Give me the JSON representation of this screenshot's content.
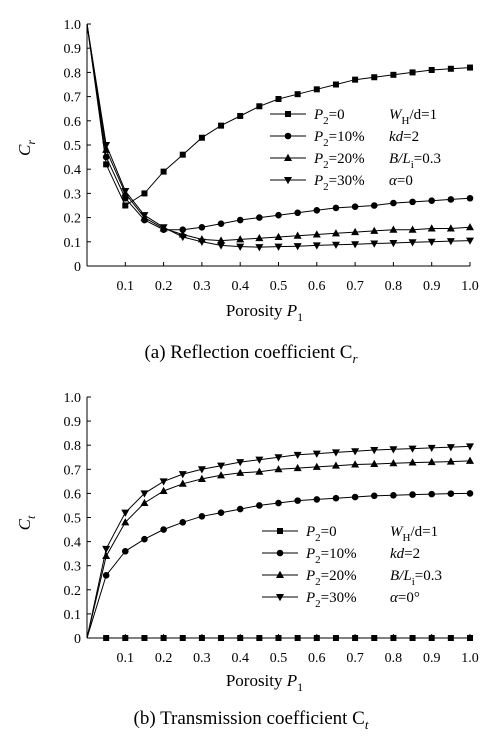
{
  "chart_data": [
    {
      "type": "line",
      "caption": "(a) Reflection coefficient C",
      "caption_sub": "r",
      "xlabel": "Porosity P",
      "xlabel_sub": "1",
      "ylabel": "C",
      "ylabel_sub": "r",
      "xlim": [
        0,
        1.0
      ],
      "ylim": [
        0,
        1.0
      ],
      "xticks": [
        "0.1",
        "0.2",
        "0.3",
        "0.4",
        "0.5",
        "0.6",
        "0.7",
        "0.8",
        "0.9",
        "1.0"
      ],
      "yticks": [
        "0",
        "0.1",
        "0.2",
        "0.3",
        "0.4",
        "0.5",
        "0.6",
        "0.7",
        "0.8",
        "0.9",
        "1.0"
      ],
      "legend_position": "right",
      "legend": [
        {
          "marker": "square",
          "main": "P",
          "sub": "2",
          "rest": "=0"
        },
        {
          "marker": "circle",
          "main": "P",
          "sub": "2",
          "rest": "=10%"
        },
        {
          "marker": "triangle-up",
          "main": "P",
          "sub": "2",
          "rest": "=20%"
        },
        {
          "marker": "triangle-down",
          "main": "P",
          "sub": "2",
          "rest": "=30%"
        }
      ],
      "params": [
        {
          "main": "W",
          "sub": "H",
          "rest": "/d=1"
        },
        {
          "main": "kd",
          "sub": "",
          "rest": "=2"
        },
        {
          "main": "B/L",
          "sub": "i",
          "rest": "=0.3"
        },
        {
          "main": "α",
          "sub": "",
          "rest": "=0"
        }
      ],
      "series": [
        {
          "marker": "square",
          "x": [
            0.0,
            0.05,
            0.1,
            0.15,
            0.2,
            0.25,
            0.3,
            0.35,
            0.4,
            0.45,
            0.5,
            0.55,
            0.6,
            0.65,
            0.7,
            0.75,
            0.8,
            0.85,
            0.9,
            0.95,
            1.0
          ],
          "y": [
            1.0,
            0.42,
            0.25,
            0.3,
            0.39,
            0.46,
            0.53,
            0.58,
            0.62,
            0.66,
            0.69,
            0.71,
            0.73,
            0.75,
            0.77,
            0.78,
            0.79,
            0.8,
            0.81,
            0.815,
            0.82
          ]
        },
        {
          "marker": "circle",
          "x": [
            0.0,
            0.05,
            0.1,
            0.15,
            0.2,
            0.25,
            0.3,
            0.35,
            0.4,
            0.45,
            0.5,
            0.55,
            0.6,
            0.65,
            0.7,
            0.75,
            0.8,
            0.85,
            0.9,
            0.95,
            1.0
          ],
          "y": [
            1.0,
            0.45,
            0.28,
            0.19,
            0.15,
            0.15,
            0.16,
            0.175,
            0.19,
            0.2,
            0.21,
            0.22,
            0.23,
            0.24,
            0.245,
            0.25,
            0.26,
            0.265,
            0.27,
            0.275,
            0.28
          ]
        },
        {
          "marker": "triangle-up",
          "x": [
            0.0,
            0.05,
            0.1,
            0.15,
            0.2,
            0.25,
            0.3,
            0.35,
            0.4,
            0.45,
            0.5,
            0.55,
            0.6,
            0.65,
            0.7,
            0.75,
            0.8,
            0.85,
            0.9,
            0.95,
            1.0
          ],
          "y": [
            1.0,
            0.48,
            0.3,
            0.2,
            0.155,
            0.13,
            0.11,
            0.105,
            0.11,
            0.115,
            0.12,
            0.125,
            0.13,
            0.135,
            0.14,
            0.145,
            0.15,
            0.15,
            0.155,
            0.155,
            0.16
          ]
        },
        {
          "marker": "triangle-down",
          "x": [
            0.0,
            0.05,
            0.1,
            0.15,
            0.2,
            0.25,
            0.3,
            0.35,
            0.4,
            0.45,
            0.5,
            0.55,
            0.6,
            0.65,
            0.7,
            0.75,
            0.8,
            0.85,
            0.9,
            0.95,
            1.0
          ],
          "y": [
            1.0,
            0.5,
            0.31,
            0.21,
            0.16,
            0.12,
            0.1,
            0.085,
            0.08,
            0.078,
            0.08,
            0.082,
            0.085,
            0.088,
            0.09,
            0.093,
            0.095,
            0.098,
            0.1,
            0.103,
            0.105
          ]
        }
      ]
    },
    {
      "type": "line",
      "caption": "(b) Transmission coefficient C",
      "caption_sub": "t",
      "xlabel": "Porosity P",
      "xlabel_sub": "1",
      "ylabel": "C",
      "ylabel_sub": "t",
      "xlim": [
        0,
        1.0
      ],
      "ylim": [
        0,
        1.0
      ],
      "xticks": [
        "0.1",
        "0.2",
        "0.3",
        "0.4",
        "0.5",
        "0.6",
        "0.7",
        "0.8",
        "0.9",
        "1.0"
      ],
      "yticks": [
        "0",
        "0.1",
        "0.2",
        "0.3",
        "0.4",
        "0.5",
        "0.6",
        "0.7",
        "0.8",
        "0.9",
        "1.0"
      ],
      "legend_position": "bottom-right",
      "legend": [
        {
          "marker": "square",
          "main": "P",
          "sub": "2",
          "rest": "=0"
        },
        {
          "marker": "circle",
          "main": "P",
          "sub": "2",
          "rest": "=10%"
        },
        {
          "marker": "triangle-up",
          "main": "P",
          "sub": "2",
          "rest": "=20%"
        },
        {
          "marker": "triangle-down",
          "main": "P",
          "sub": "2",
          "rest": "=30%"
        }
      ],
      "params": [
        {
          "main": "W",
          "sub": "H",
          "rest": "/d=1"
        },
        {
          "main": "kd",
          "sub": "",
          "rest": "=2"
        },
        {
          "main": "B/L",
          "sub": "i",
          "rest": "=0.3"
        },
        {
          "main": "α",
          "sub": "",
          "rest": "=0°"
        }
      ],
      "series": [
        {
          "marker": "square",
          "x": [
            0.0,
            0.05,
            0.1,
            0.15,
            0.2,
            0.25,
            0.3,
            0.35,
            0.4,
            0.45,
            0.5,
            0.55,
            0.6,
            0.65,
            0.7,
            0.75,
            0.8,
            0.85,
            0.9,
            0.95,
            1.0
          ],
          "y": [
            0,
            0,
            0,
            0,
            0,
            0,
            0,
            0,
            0,
            0,
            0,
            0,
            0,
            0,
            0,
            0,
            0,
            0,
            0,
            0,
            0
          ]
        },
        {
          "marker": "circle",
          "x": [
            0.0,
            0.05,
            0.1,
            0.15,
            0.2,
            0.25,
            0.3,
            0.35,
            0.4,
            0.45,
            0.5,
            0.55,
            0.6,
            0.65,
            0.7,
            0.75,
            0.8,
            0.85,
            0.9,
            0.95,
            1.0
          ],
          "y": [
            0.0,
            0.26,
            0.36,
            0.41,
            0.45,
            0.48,
            0.505,
            0.52,
            0.535,
            0.55,
            0.56,
            0.57,
            0.575,
            0.58,
            0.585,
            0.59,
            0.592,
            0.595,
            0.597,
            0.599,
            0.6
          ]
        },
        {
          "marker": "triangle-up",
          "x": [
            0.0,
            0.05,
            0.1,
            0.15,
            0.2,
            0.25,
            0.3,
            0.35,
            0.4,
            0.45,
            0.5,
            0.55,
            0.6,
            0.65,
            0.7,
            0.75,
            0.8,
            0.85,
            0.9,
            0.95,
            1.0
          ],
          "y": [
            0.0,
            0.34,
            0.48,
            0.56,
            0.61,
            0.64,
            0.66,
            0.675,
            0.685,
            0.69,
            0.7,
            0.705,
            0.71,
            0.715,
            0.72,
            0.722,
            0.725,
            0.728,
            0.73,
            0.732,
            0.735
          ]
        },
        {
          "marker": "triangle-down",
          "x": [
            0.0,
            0.05,
            0.1,
            0.15,
            0.2,
            0.25,
            0.3,
            0.35,
            0.4,
            0.45,
            0.5,
            0.55,
            0.6,
            0.65,
            0.7,
            0.75,
            0.8,
            0.85,
            0.9,
            0.95,
            1.0
          ],
          "y": [
            0.0,
            0.37,
            0.52,
            0.6,
            0.65,
            0.68,
            0.7,
            0.715,
            0.73,
            0.74,
            0.75,
            0.76,
            0.765,
            0.77,
            0.775,
            0.78,
            0.783,
            0.786,
            0.789,
            0.792,
            0.795
          ]
        }
      ]
    }
  ]
}
